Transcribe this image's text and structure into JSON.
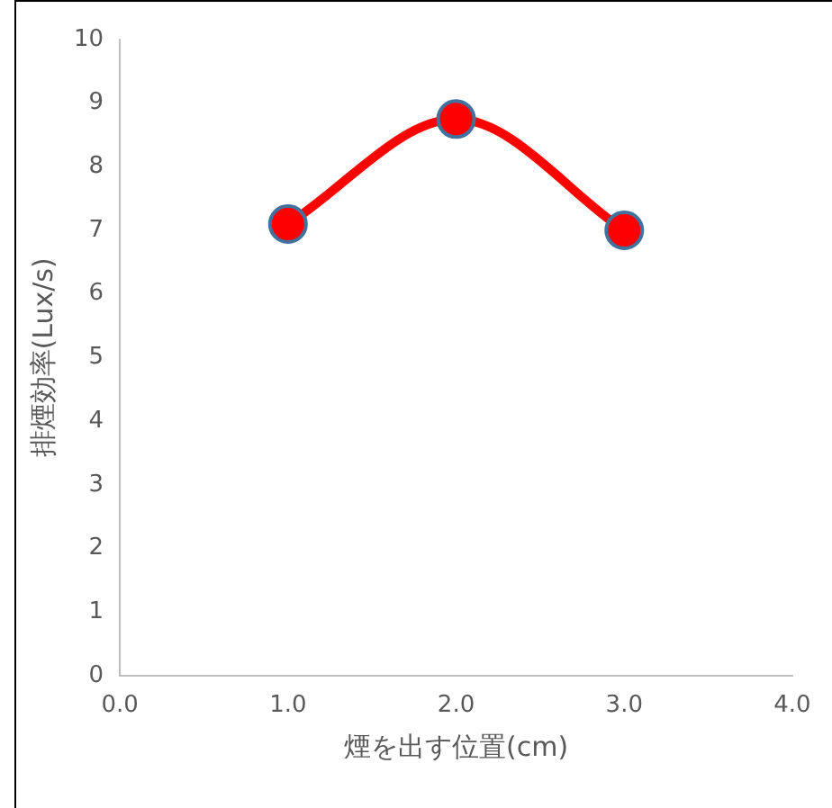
{
  "chart_data": {
    "type": "line",
    "xlabel": "煙を出す位置(cm)",
    "ylabel": "排煙効率(Lux/s)",
    "x": [
      1,
      2,
      3
    ],
    "series": [
      {
        "color": "#ff0000",
        "values": [
          7.1,
          8.75,
          7.0
        ]
      }
    ],
    "xlim": [
      0,
      4
    ],
    "xticks": [
      {
        "value": 0,
        "label": "0.0"
      },
      {
        "value": 1,
        "label": "1.0"
      },
      {
        "value": 2,
        "label": "2.0"
      },
      {
        "value": 3,
        "label": "3.0"
      },
      {
        "value": 4,
        "label": "4.0"
      }
    ],
    "ylim": [
      0,
      10
    ],
    "yticks": [
      0,
      1,
      2,
      3,
      4,
      5,
      6,
      7,
      8,
      9,
      10
    ],
    "grid": false,
    "legend": false,
    "marker": "circle",
    "line_style": "solid"
  }
}
